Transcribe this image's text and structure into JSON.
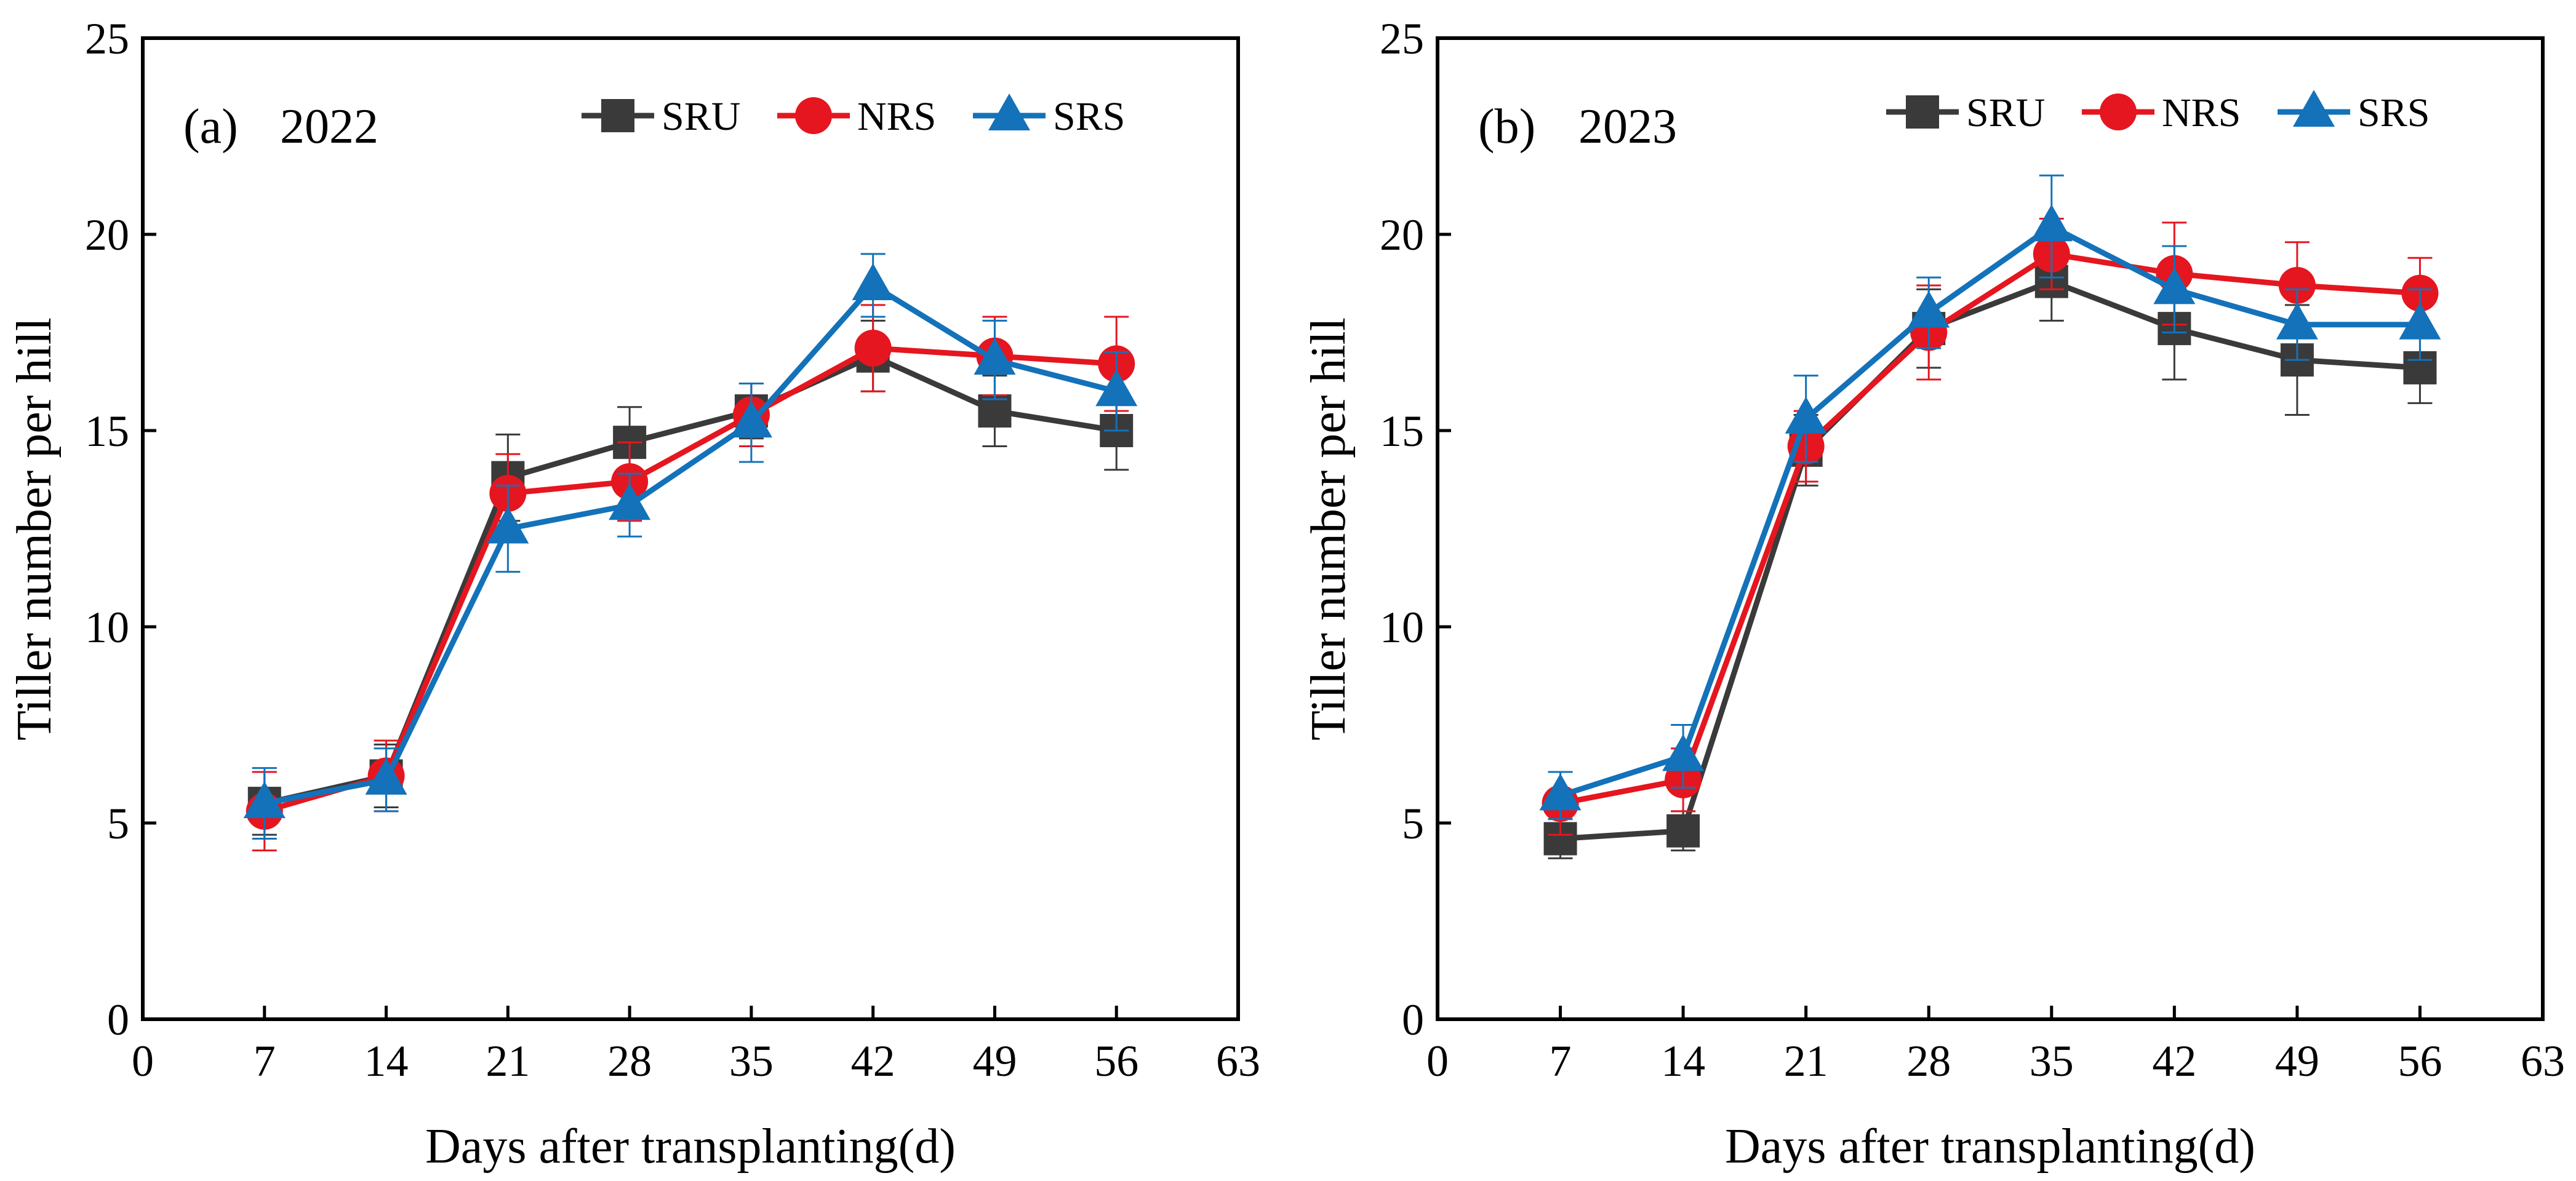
{
  "chart_data": [
    {
      "type": "line",
      "panel_label": "(a)",
      "year": "2022",
      "xlabel": "Days after transplanting(d)",
      "ylabel": "Tiller number per hill",
      "xlim": [
        0,
        63
      ],
      "ylim": [
        0,
        25
      ],
      "xticks": [
        "0",
        "7",
        "14",
        "21",
        "28",
        "35",
        "42",
        "49",
        "56",
        "63"
      ],
      "yticks": [
        "0",
        "5",
        "10",
        "15",
        "20",
        "25"
      ],
      "grid": false,
      "legend_position": "top-right",
      "x": [
        7,
        14,
        21,
        28,
        35,
        42,
        49,
        56
      ],
      "series": [
        {
          "name": "SRU",
          "color": "#3a3a3a",
          "marker": "square",
          "values": [
            5.5,
            6.2,
            13.8,
            14.7,
            15.5,
            16.9,
            15.5,
            15.0
          ],
          "errors": [
            0.8,
            0.8,
            1.1,
            0.9,
            0.7,
            0.9,
            0.9,
            1.0
          ]
        },
        {
          "name": "NRS",
          "color": "#e5161f",
          "marker": "circle",
          "values": [
            5.3,
            6.2,
            13.4,
            13.7,
            15.4,
            17.1,
            16.9,
            16.7
          ],
          "errors": [
            1.0,
            0.9,
            1.0,
            1.0,
            0.8,
            1.1,
            1.0,
            1.2
          ]
        },
        {
          "name": "SRS",
          "color": "#1372b9",
          "marker": "triangle",
          "values": [
            5.5,
            6.1,
            12.5,
            13.1,
            15.2,
            18.7,
            16.8,
            16.0
          ],
          "errors": [
            0.9,
            0.8,
            1.1,
            0.8,
            1.0,
            0.8,
            1.0,
            1.0
          ]
        }
      ]
    },
    {
      "type": "line",
      "panel_label": "(b)",
      "year": "2023",
      "xlabel": "Days after transplanting(d)",
      "ylabel": "Tiller number per hill",
      "xlim": [
        0,
        63
      ],
      "ylim": [
        0,
        25
      ],
      "xticks": [
        "0",
        "7",
        "14",
        "21",
        "28",
        "35",
        "42",
        "49",
        "56",
        "63"
      ],
      "yticks": [
        "0",
        "5",
        "10",
        "15",
        "20",
        "25"
      ],
      "grid": false,
      "legend_position": "top-right",
      "x": [
        7,
        14,
        21,
        28,
        35,
        42,
        49,
        56
      ],
      "series": [
        {
          "name": "SRU",
          "color": "#3a3a3a",
          "marker": "square",
          "values": [
            4.6,
            4.8,
            14.5,
            17.6,
            18.8,
            17.6,
            16.8,
            16.6
          ],
          "errors": [
            0.5,
            0.5,
            0.9,
            1.0,
            1.0,
            1.3,
            1.4,
            0.9
          ]
        },
        {
          "name": "NRS",
          "color": "#e5161f",
          "marker": "circle",
          "values": [
            5.5,
            6.1,
            14.6,
            17.5,
            19.5,
            19.0,
            18.7,
            18.5
          ],
          "errors": [
            0.8,
            0.8,
            0.9,
            1.2,
            0.9,
            1.3,
            1.1,
            0.9
          ]
        },
        {
          "name": "SRS",
          "color": "#1372b9",
          "marker": "triangle",
          "values": [
            5.7,
            6.7,
            15.3,
            18.0,
            20.2,
            18.6,
            17.7,
            17.7
          ],
          "errors": [
            0.6,
            0.8,
            1.1,
            0.9,
            1.3,
            1.1,
            0.9,
            0.9
          ]
        }
      ]
    }
  ]
}
